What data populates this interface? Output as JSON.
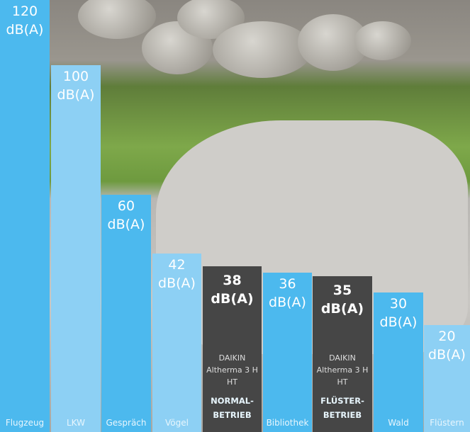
{
  "chart_data": {
    "type": "bar",
    "unit": "dB(A)",
    "categories": [
      "Flugzeug",
      "LKW",
      "Gespräch",
      "Vögel",
      "NORMAL-BETRIEB",
      "Bibliothek",
      "FLÜSTER-BETRIEB",
      "Wald",
      "Flüstern"
    ],
    "descriptions": [
      null,
      null,
      null,
      null,
      "DAIKIN Altherma 3 H HT",
      null,
      "DAIKIN Altherma 3 H HT",
      null,
      null
    ],
    "values": [
      120,
      100,
      60,
      42,
      38,
      36,
      35,
      30,
      20
    ],
    "colors": [
      "#4cb9ee",
      "#8dd0f4",
      "#4cb9ee",
      "#8dd0f4",
      "#464646",
      "#4cb9ee",
      "#464646",
      "#4cb9ee",
      "#8dd0f4"
    ],
    "ylim": [
      -13,
      120
    ]
  }
}
